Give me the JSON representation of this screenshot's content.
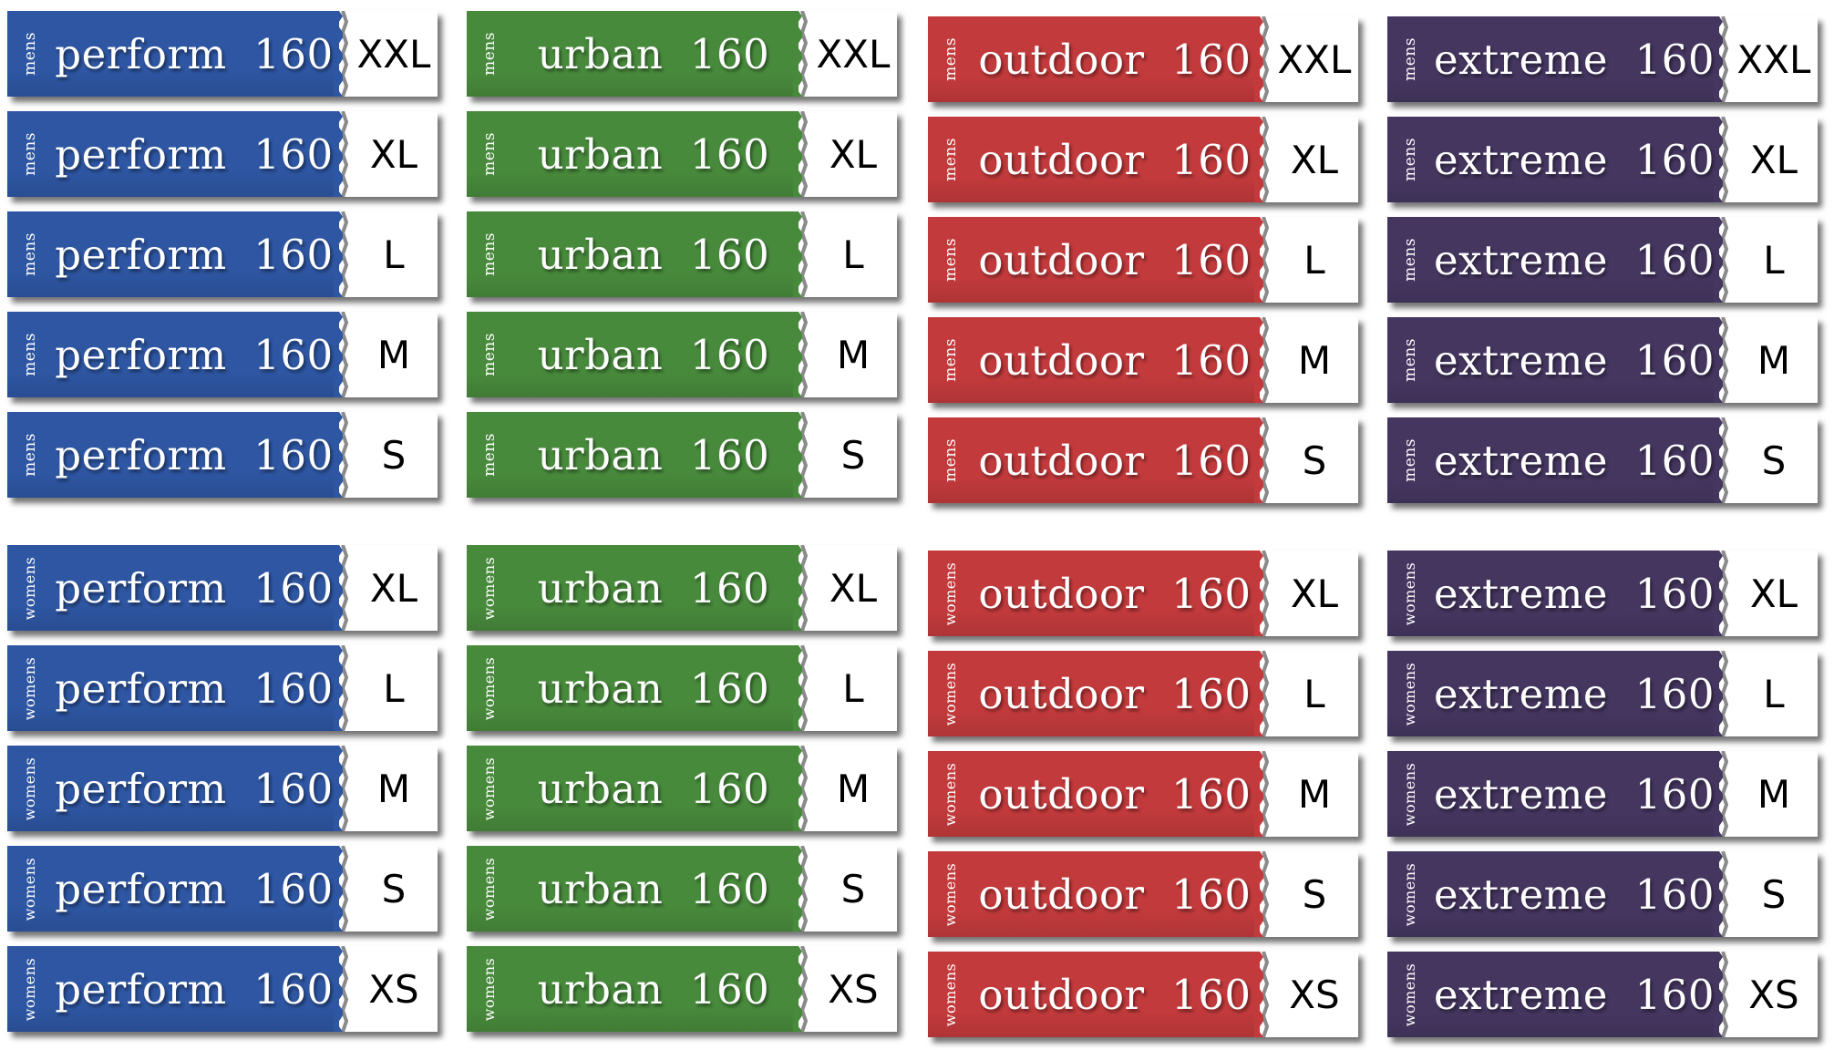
{
  "colors": {
    "perform": "#2e56a2",
    "urban": "#488a3c",
    "outdoor": "#c23a3c",
    "extreme": "#453660",
    "size_panel": "#ffffff",
    "size_text": "#000000"
  },
  "groups": [
    {
      "gender": "mens",
      "columns": [
        {
          "line": "perform",
          "label": "perform  160",
          "sizes": [
            "XXL",
            "XL",
            "L",
            "M",
            "S"
          ]
        },
        {
          "line": "urban",
          "label": "urban  160",
          "sizes": [
            "XXL",
            "XL",
            "L",
            "M",
            "S"
          ]
        },
        {
          "line": "outdoor",
          "label": "outdoor  160",
          "sizes": [
            "XXL",
            "XL",
            "L",
            "M",
            "S"
          ]
        },
        {
          "line": "extreme",
          "label": "extreme  160",
          "sizes": [
            "XXL",
            "XL",
            "L",
            "M",
            "S"
          ]
        }
      ]
    },
    {
      "gender": "womens",
      "columns": [
        {
          "line": "perform",
          "label": "perform  160",
          "sizes": [
            "XL",
            "L",
            "M",
            "S",
            "XS"
          ]
        },
        {
          "line": "urban",
          "label": "urban  160",
          "sizes": [
            "XL",
            "L",
            "M",
            "S",
            "XS"
          ]
        },
        {
          "line": "outdoor",
          "label": "outdoor  160",
          "sizes": [
            "XL",
            "L",
            "M",
            "S",
            "XS"
          ]
        },
        {
          "line": "extreme",
          "label": "extreme  160",
          "sizes": [
            "XL",
            "L",
            "M",
            "S",
            "XS"
          ]
        }
      ]
    }
  ]
}
